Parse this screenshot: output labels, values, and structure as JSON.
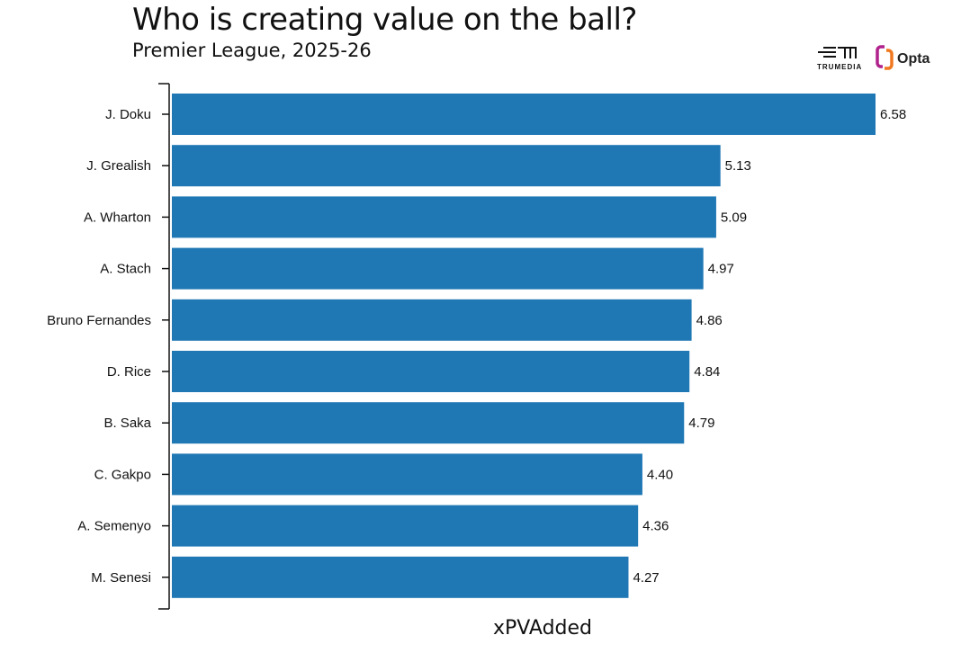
{
  "title": "Who is creating value on the ball?",
  "subtitle": "Premier League, 2025-26",
  "logos": [
    "TRUMEDIA",
    "Opta"
  ],
  "chart_data": {
    "type": "bar",
    "orientation": "horizontal",
    "categories": [
      "J. Doku",
      "J. Grealish",
      "A. Wharton",
      "A. Stach",
      "Bruno Fernandes",
      "D. Rice",
      "B. Saka",
      "C. Gakpo",
      "A. Semenyo",
      "M. Senesi"
    ],
    "values": [
      6.58,
      5.13,
      5.09,
      4.97,
      4.86,
      4.84,
      4.79,
      4.4,
      4.36,
      4.27
    ],
    "value_labels": [
      "6.58",
      "5.13",
      "5.09",
      "4.97",
      "4.86",
      "4.84",
      "4.79",
      "4.40",
      "4.36",
      "4.27"
    ],
    "xlabel": "xPVAdded",
    "xlim": [
      0,
      6.58
    ],
    "grid": false,
    "bar_color": "#1f77b4"
  }
}
